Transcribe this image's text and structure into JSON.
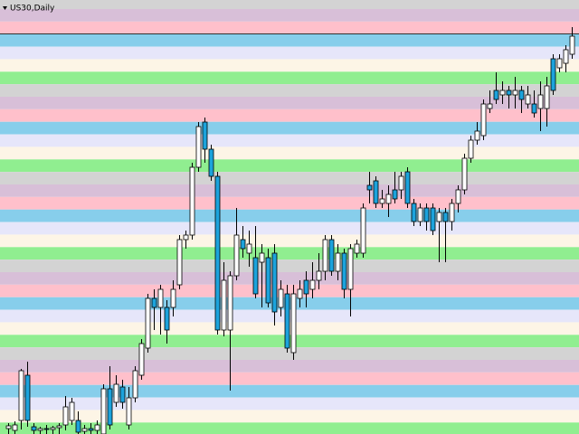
{
  "chart_data": {
    "type": "candlestick",
    "title": "US30,Daily",
    "ylim": [
      0,
      480
    ],
    "up_color": "#ffffff",
    "down_color": "#1ca3dc",
    "wick_color": "#000000",
    "open": [
      6,
      4,
      15,
      65,
      8,
      4,
      6,
      5,
      7,
      10,
      15,
      15,
      3,
      6,
      4,
      0,
      50,
      35,
      52,
      10,
      40,
      65,
      95,
      150,
      140,
      140,
      140,
      165,
      215,
      220,
      295,
      345,
      315,
      285,
      115,
      115,
      175,
      215,
      200,
      195,
      190,
      195,
      200,
      140,
      155,
      90,
      150,
      170,
      160,
      170,
      180,
      215,
      180,
      200,
      160,
      200,
      200,
      275,
      280,
      255,
      255,
      270,
      270,
      290,
      255,
      235,
      250,
      250,
      235,
      245,
      235,
      255,
      270,
      305,
      325,
      330,
      360,
      380,
      375,
      380,
      375,
      380,
      365,
      365,
      360,
      360,
      415,
      405,
      410,
      420
    ],
    "high": [
      12,
      14,
      72,
      80,
      12,
      8,
      10,
      9,
      12,
      42,
      40,
      25,
      10,
      12,
      15,
      55,
      75,
      65,
      60,
      52,
      75,
      105,
      155,
      160,
      165,
      148,
      170,
      220,
      225,
      300,
      345,
      350,
      320,
      290,
      190,
      180,
      250,
      230,
      225,
      230,
      210,
      205,
      210,
      170,
      165,
      165,
      170,
      180,
      190,
      200,
      220,
      220,
      210,
      205,
      210,
      215,
      255,
      290,
      285,
      270,
      275,
      290,
      290,
      295,
      260,
      255,
      255,
      255,
      250,
      250,
      260,
      275,
      310,
      330,
      345,
      370,
      380,
      400,
      390,
      385,
      395,
      385,
      385,
      380,
      390,
      395,
      420,
      420,
      430,
      450
    ],
    "low": [
      0,
      0,
      5,
      8,
      0,
      0,
      0,
      0,
      0,
      4,
      10,
      0,
      0,
      0,
      0,
      0,
      5,
      30,
      28,
      5,
      35,
      60,
      90,
      115,
      110,
      100,
      130,
      160,
      205,
      215,
      290,
      300,
      280,
      110,
      108,
      48,
      170,
      195,
      185,
      150,
      140,
      140,
      120,
      130,
      90,
      82,
      140,
      140,
      150,
      160,
      170,
      175,
      170,
      150,
      130,
      195,
      195,
      255,
      250,
      250,
      240,
      255,
      260,
      250,
      230,
      230,
      225,
      220,
      190,
      190,
      225,
      245,
      265,
      300,
      320,
      325,
      355,
      365,
      365,
      360,
      360,
      355,
      360,
      350,
      335,
      340,
      375,
      400,
      400,
      415
    ],
    "close": [
      9,
      10,
      70,
      15,
      4,
      6,
      5,
      7,
      9,
      30,
      35,
      2,
      6,
      4,
      10,
      50,
      10,
      55,
      35,
      40,
      70,
      100,
      150,
      140,
      160,
      115,
      160,
      215,
      220,
      295,
      340,
      315,
      285,
      115,
      170,
      175,
      220,
      205,
      210,
      155,
      200,
      145,
      135,
      160,
      95,
      155,
      160,
      155,
      170,
      180,
      215,
      180,
      200,
      160,
      205,
      210,
      250,
      270,
      255,
      260,
      265,
      260,
      285,
      255,
      235,
      250,
      235,
      225,
      245,
      235,
      255,
      270,
      305,
      325,
      335,
      365,
      365,
      370,
      380,
      375,
      380,
      370,
      375,
      355,
      375,
      385,
      380,
      415,
      425,
      440
    ]
  }
}
